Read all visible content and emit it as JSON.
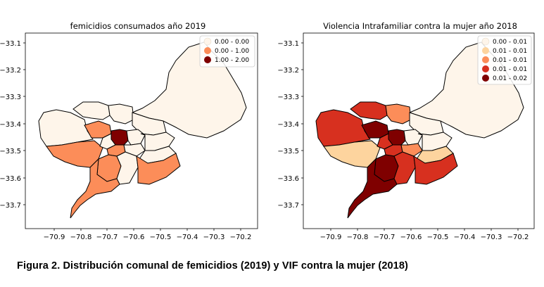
{
  "caption": "Figura 2. Distribución comunal de femicidios (2019) y VIF contra la mujer (2018)",
  "chart_data": [
    {
      "type": "choropleth",
      "title": "femicidios consumados año 2019",
      "x_ticks": [
        "−70.9",
        "−70.8",
        "−70.7",
        "−70.6",
        "−70.5",
        "−70.4",
        "−70.3",
        "−70.2"
      ],
      "y_ticks": [
        "−33.1",
        "−33.2",
        "−33.3",
        "−33.4",
        "−33.5",
        "−33.6",
        "−33.7"
      ],
      "legend_placement": "top-right",
      "legend": [
        {
          "label": "0.00 - 0.00",
          "color": "#fef5ea"
        },
        {
          "label": "0.00 - 1.00",
          "color": "#fc8d59"
        },
        {
          "label": "1.00 - 2.00",
          "color": "#7f0000"
        }
      ]
    },
    {
      "type": "choropleth",
      "title": "Violencia Intrafamiliar contra la mujer año 2018",
      "x_ticks": [
        "−70.9",
        "−70.8",
        "−70.7",
        "−70.6",
        "−70.5",
        "−70.4",
        "−70.3",
        "−70.2"
      ],
      "y_ticks": [
        "−33.1",
        "−33.2",
        "−33.3",
        "−33.4",
        "−33.5",
        "−33.6",
        "−33.7"
      ],
      "legend_placement": "top-right",
      "legend": [
        {
          "label": "0.00 - 0.01",
          "color": "#fef5ea"
        },
        {
          "label": "0.01 - 0.01",
          "color": "#fdd49e"
        },
        {
          "label": "0.01 - 0.01",
          "color": "#fc8d59"
        },
        {
          "label": "0.01 - 0.01",
          "color": "#d7301f"
        },
        {
          "label": "0.01 - 0.02",
          "color": "#7f0000"
        }
      ]
    }
  ]
}
